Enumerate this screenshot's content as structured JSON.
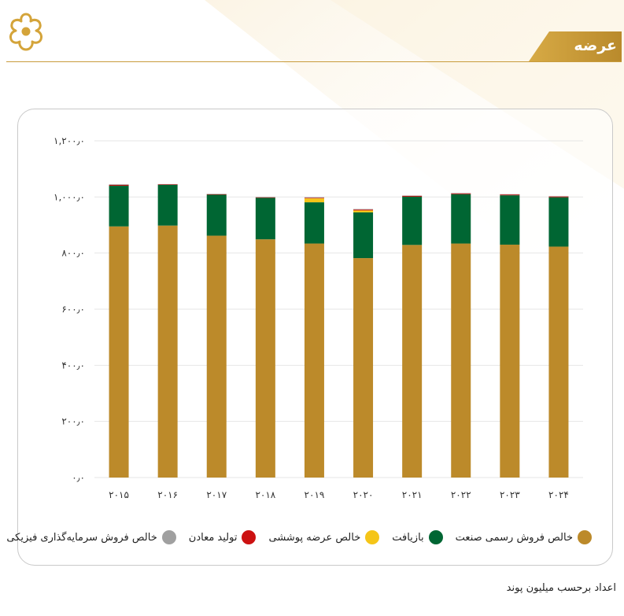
{
  "header": {
    "title": "عرضه",
    "accent_color": "#c89b3c"
  },
  "logo": {
    "icon": "flower-ornament-icon"
  },
  "footnote": "اعداد برحسب میلیون پوند",
  "legend": [
    {
      "label": "خالص فروش رسمی صنعت",
      "color": "#bc8a2a"
    },
    {
      "label": "بازیافت",
      "color": "#006633"
    },
    {
      "label": "خالص عرضه پوششی",
      "color": "#f5c518"
    },
    {
      "label": "تولید معادن",
      "color": "#cc1111"
    },
    {
      "label": "خالص فروش سرمایه‌گذاری فیزیکی",
      "color": "#a0a0a0"
    }
  ],
  "chart_data": {
    "type": "bar",
    "stacked": true,
    "categories": [
      "۲۰۱۵",
      "۲۰۱۶",
      "۲۰۱۷",
      "۲۰۱۸",
      "۲۰۱۹",
      "۲۰۲۰",
      "۲۰۲۱",
      "۲۰۲۲",
      "۲۰۲۳",
      "۲۰۲۴"
    ],
    "ylim": [
      0,
      1200
    ],
    "yticks": [
      {
        "value": 0,
        "label": "۰٫۰"
      },
      {
        "value": 200,
        "label": "۲۰۰٫۰"
      },
      {
        "value": 400,
        "label": "۴۰۰٫۰"
      },
      {
        "value": 600,
        "label": "۶۰۰٫۰"
      },
      {
        "value": 800,
        "label": "۸۰۰٫۰"
      },
      {
        "value": 1000,
        "label": "۱,۰۰۰٫۰"
      },
      {
        "value": 1200,
        "label": "۱,۲۰۰٫۰"
      }
    ],
    "grid": true,
    "legend_position": "bottom",
    "series": [
      {
        "name": "خالص فروش رسمی صنعت",
        "color": "#bc8a2a",
        "values": [
          895,
          898,
          862,
          849,
          834,
          782,
          829,
          834,
          830,
          823
        ]
      },
      {
        "name": "بازیافت",
        "color": "#006633",
        "values": [
          145,
          145,
          146,
          148,
          147,
          163,
          172,
          176,
          176,
          176
        ]
      },
      {
        "name": "خالص عرضه پوششی",
        "color": "#f5c518",
        "values": [
          0,
          0,
          0,
          0,
          14,
          7,
          0,
          0,
          0,
          0
        ]
      },
      {
        "name": "تولید معادن",
        "color": "#cc1111",
        "values": [
          3,
          2,
          2,
          2,
          2,
          3,
          3,
          3,
          3,
          3
        ]
      },
      {
        "name": "خالص فروش سرمایه‌گذاری فیزیکی",
        "color": "#a0a0a0",
        "values": [
          2,
          1,
          1,
          1,
          2,
          2,
          1,
          1,
          1,
          1
        ]
      }
    ]
  }
}
